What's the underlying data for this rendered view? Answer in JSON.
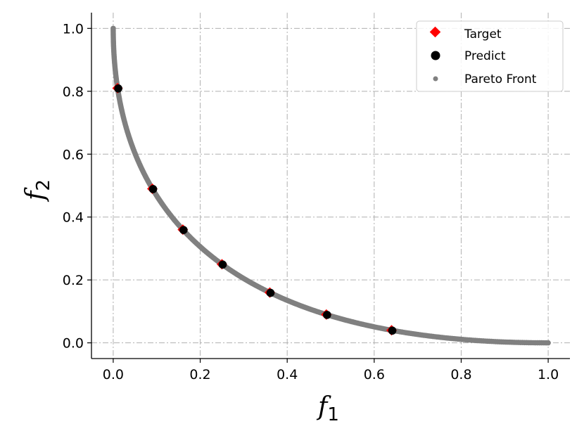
{
  "chart_data": {
    "type": "scatter",
    "xlabel": "f",
    "xlabel_sub": "1",
    "ylabel": "f",
    "ylabel_sub": "2",
    "xlim": [
      -0.05,
      1.05
    ],
    "ylim": [
      -0.05,
      1.05
    ],
    "xticks": [
      0.0,
      0.2,
      0.4,
      0.6,
      0.8,
      1.0
    ],
    "yticks": [
      0.0,
      0.2,
      0.4,
      0.6,
      0.8,
      1.0
    ],
    "xtick_labels": [
      "0.0",
      "0.2",
      "0.4",
      "0.6",
      "0.8",
      "1.0"
    ],
    "ytick_labels": [
      "0.0",
      "0.2",
      "0.4",
      "0.6",
      "0.8",
      "1.0"
    ],
    "grid": true,
    "legend_position": "top-right",
    "series": [
      {
        "name": "Target",
        "marker": "diamond",
        "color": "#ff0000",
        "x": [
          0.01,
          0.09,
          0.16,
          0.25,
          0.36,
          0.49,
          0.64
        ],
        "y": [
          0.81,
          0.49,
          0.36,
          0.25,
          0.16,
          0.09,
          0.04
        ]
      },
      {
        "name": "Predict",
        "marker": "circle",
        "color": "#000000",
        "x": [
          0.01,
          0.09,
          0.16,
          0.25,
          0.36,
          0.49,
          0.64
        ],
        "y": [
          0.81,
          0.49,
          0.36,
          0.25,
          0.16,
          0.09,
          0.04
        ]
      },
      {
        "name": "Pareto Front",
        "marker": "point",
        "color": "#808080",
        "curve": "f2 = (1 - sqrt(f1))^2",
        "x_range": [
          0.0,
          1.0
        ]
      }
    ]
  },
  "colors": {
    "grid": "#b0b0b0",
    "axes": "#000000",
    "legend_border": "#cccccc"
  }
}
